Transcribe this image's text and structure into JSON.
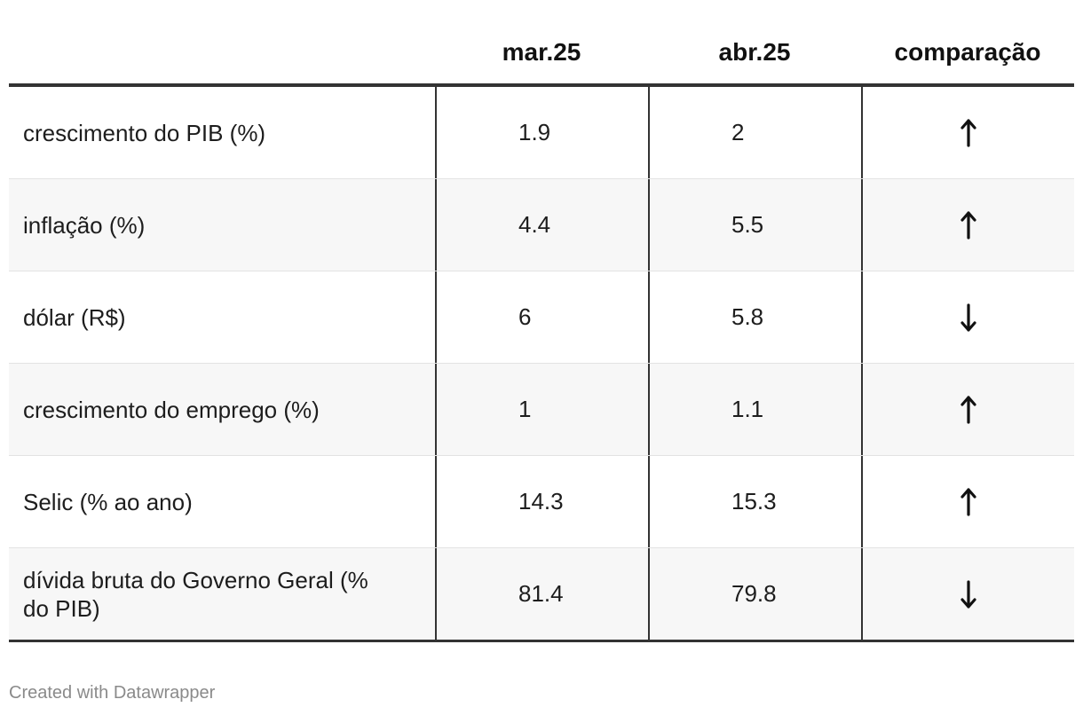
{
  "chart_data": {
    "type": "table",
    "columns": [
      "",
      "mar.25",
      "abr.25",
      "comparação"
    ],
    "rows": [
      {
        "label": "crescimento do PIB (%)",
        "mar25": "1.9",
        "abr25": "2",
        "trend": "up"
      },
      {
        "label": "inflação (%)",
        "mar25": "4.4",
        "abr25": "5.5",
        "trend": "up"
      },
      {
        "label": "dólar (R$)",
        "mar25": "6",
        "abr25": "5.8",
        "trend": "down"
      },
      {
        "label": "crescimento do emprego (%)",
        "mar25": "1",
        "abr25": "1.1",
        "trend": "up"
      },
      {
        "label": "Selic (% ao ano)",
        "mar25": "14.3",
        "abr25": "15.3",
        "trend": "up"
      },
      {
        "label": "dívida bruta do Governo Geral (% do PIB)",
        "mar25": "81.4",
        "abr25": "79.8",
        "trend": "down"
      }
    ]
  },
  "icons": {
    "up": "arrow-up-icon",
    "down": "arrow-down-icon"
  },
  "colors": {
    "text": "#1d1d1d",
    "rule": "#333333",
    "alt_row": "#f7f7f7",
    "credit": "#8a8a8a"
  },
  "footer": {
    "credit": "Created with Datawrapper"
  }
}
